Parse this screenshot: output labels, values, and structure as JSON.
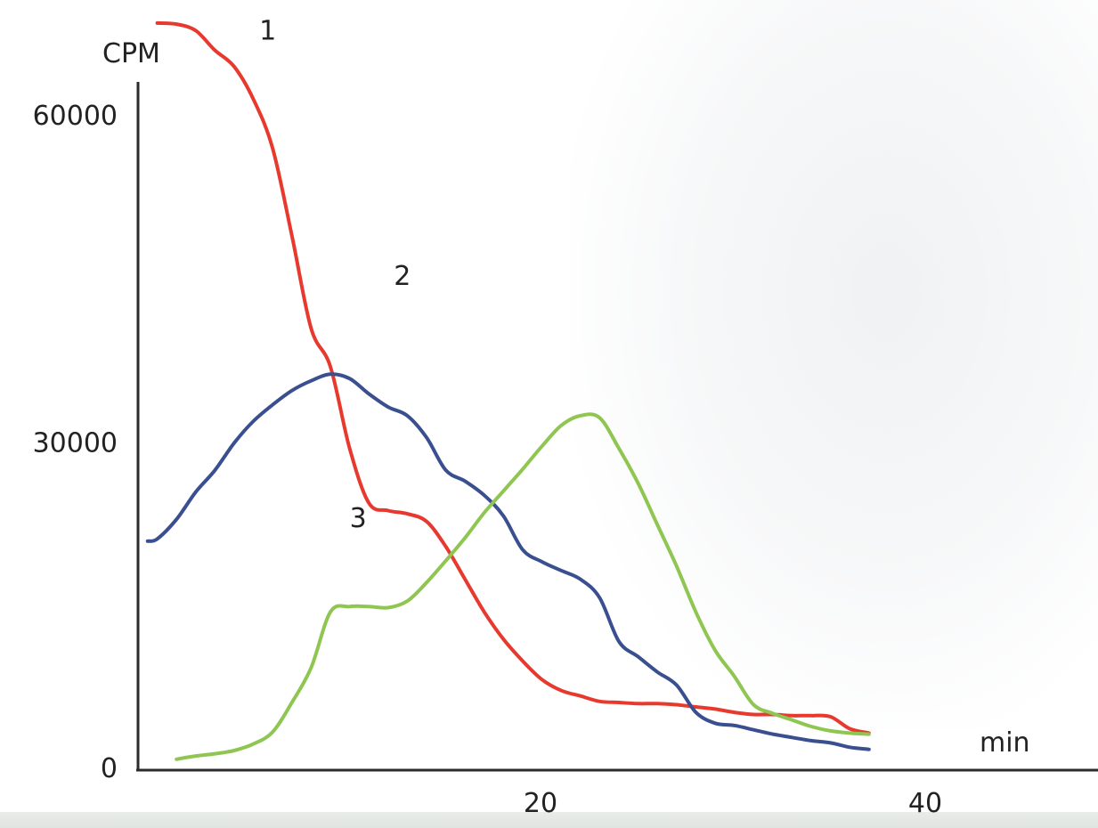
{
  "chart_data": {
    "type": "line",
    "title": "",
    "xlabel": "min",
    "ylabel": "CPM",
    "xlim": [
      0,
      50
    ],
    "ylim": [
      0,
      65000
    ],
    "x_ticks": [
      20,
      40
    ],
    "x_tick_labels": [
      "20",
      "40"
    ],
    "y_ticks": [
      0,
      30000,
      60000
    ],
    "y_tick_labels": [
      "0",
      "30000",
      "60000"
    ],
    "grid": false,
    "legend": "none",
    "series": [
      {
        "name": "1",
        "color": "#e8392f",
        "label_at": [
          6.3,
          67000
        ],
        "points": [
          [
            1,
            68500
          ],
          [
            2,
            68400
          ],
          [
            3,
            67800
          ],
          [
            4,
            66000
          ],
          [
            5,
            64500
          ],
          [
            6,
            61500
          ],
          [
            7,
            57000
          ],
          [
            8,
            49000
          ],
          [
            9,
            40500
          ],
          [
            10,
            37000
          ],
          [
            11,
            29500
          ],
          [
            12,
            24500
          ],
          [
            13,
            23800
          ],
          [
            14,
            23500
          ],
          [
            15,
            22800
          ],
          [
            16,
            20500
          ],
          [
            17,
            17500
          ],
          [
            18,
            14500
          ],
          [
            19,
            12000
          ],
          [
            20,
            10000
          ],
          [
            21,
            8300
          ],
          [
            22,
            7300
          ],
          [
            23,
            6800
          ],
          [
            24,
            6300
          ],
          [
            25,
            6200
          ],
          [
            26,
            6100
          ],
          [
            27,
            6100
          ],
          [
            28,
            6000
          ],
          [
            29,
            5800
          ],
          [
            30,
            5600
          ],
          [
            31,
            5300
          ],
          [
            32,
            5100
          ],
          [
            33,
            5100
          ],
          [
            34,
            5000
          ],
          [
            35,
            5000
          ],
          [
            36,
            4900
          ],
          [
            37,
            3800
          ],
          [
            38,
            3400
          ]
        ]
      },
      {
        "name": "2",
        "color": "#3a4f8f",
        "label_at": [
          13.3,
          44500
        ],
        "points": [
          [
            0.5,
            21000
          ],
          [
            1,
            21200
          ],
          [
            2,
            23000
          ],
          [
            3,
            25500
          ],
          [
            4,
            27500
          ],
          [
            5,
            30000
          ],
          [
            6,
            32000
          ],
          [
            7,
            33500
          ],
          [
            8,
            34800
          ],
          [
            9,
            35700
          ],
          [
            10,
            36300
          ],
          [
            11,
            35900
          ],
          [
            12,
            34500
          ],
          [
            13,
            33300
          ],
          [
            14,
            32500
          ],
          [
            15,
            30500
          ],
          [
            16,
            27500
          ],
          [
            17,
            26500
          ],
          [
            18,
            25200
          ],
          [
            19,
            23300
          ],
          [
            20,
            20200
          ],
          [
            21,
            19100
          ],
          [
            22,
            18300
          ],
          [
            23,
            17500
          ],
          [
            24,
            15800
          ],
          [
            25,
            11800
          ],
          [
            26,
            10400
          ],
          [
            27,
            9000
          ],
          [
            28,
            7800
          ],
          [
            29,
            5300
          ],
          [
            30,
            4300
          ],
          [
            31,
            4100
          ],
          [
            32,
            3700
          ],
          [
            33,
            3300
          ],
          [
            34,
            3000
          ],
          [
            35,
            2700
          ],
          [
            36,
            2500
          ],
          [
            37,
            2100
          ],
          [
            38,
            1900
          ]
        ]
      },
      {
        "name": "3",
        "color": "#8fc651",
        "label_at": [
          11,
          22300
        ],
        "points": [
          [
            2,
            1000
          ],
          [
            3,
            1300
          ],
          [
            4,
            1500
          ],
          [
            5,
            1800
          ],
          [
            6,
            2400
          ],
          [
            7,
            3500
          ],
          [
            8,
            6200
          ],
          [
            9,
            9400
          ],
          [
            10,
            14500
          ],
          [
            11,
            15000
          ],
          [
            12,
            15000
          ],
          [
            13,
            14900
          ],
          [
            14,
            15500
          ],
          [
            15,
            17200
          ],
          [
            16,
            19200
          ],
          [
            17,
            21300
          ],
          [
            18,
            23600
          ],
          [
            19,
            25600
          ],
          [
            20,
            27600
          ],
          [
            21,
            29700
          ],
          [
            22,
            31600
          ],
          [
            23,
            32500
          ],
          [
            24,
            32300
          ],
          [
            25,
            29500
          ],
          [
            26,
            26300
          ],
          [
            27,
            22500
          ],
          [
            28,
            18700
          ],
          [
            29,
            14500
          ],
          [
            30,
            11000
          ],
          [
            31,
            8600
          ],
          [
            32,
            6000
          ],
          [
            33,
            5200
          ],
          [
            34,
            4600
          ],
          [
            35,
            4000
          ],
          [
            36,
            3600
          ],
          [
            37,
            3400
          ],
          [
            38,
            3300
          ]
        ]
      }
    ]
  }
}
